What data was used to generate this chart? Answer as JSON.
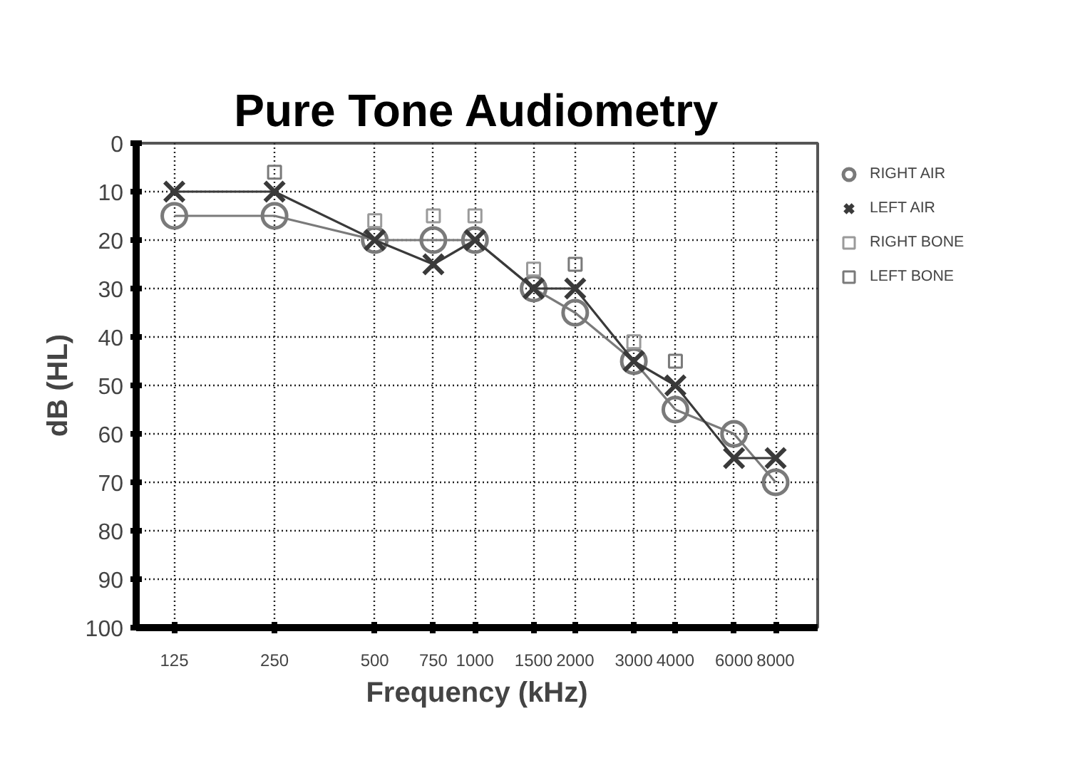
{
  "chart_data": {
    "type": "line",
    "title": "Pure Tone Audiometry",
    "xlabel": "Frequency (kHz)",
    "ylabel": "dB (HL)",
    "log": "x",
    "x": [
      125,
      250,
      500,
      750,
      1000,
      1500,
      2000,
      3000,
      4000,
      6000,
      8000
    ],
    "xlim": [
      96,
      10700
    ],
    "xticks": [
      125,
      250,
      500,
      750,
      1000,
      1500,
      2000,
      3000,
      4000,
      6000,
      8000
    ],
    "ylim": [
      100,
      0
    ],
    "yticks": [
      0,
      10,
      20,
      30,
      40,
      50,
      60,
      70,
      80,
      90,
      100
    ],
    "grid": true,
    "legend": "right",
    "line_style": "solid",
    "series": [
      {
        "name": "RIGHT AIR",
        "color": "#7a7a7a",
        "marker": "circle",
        "values": [
          15,
          15,
          20,
          20,
          20,
          30,
          35,
          45,
          55,
          60,
          70
        ]
      },
      {
        "name": "LEFT AIR",
        "color": "#3a3a3a",
        "marker": "cross",
        "values": [
          10,
          10,
          20,
          25,
          20,
          30,
          30,
          45,
          50,
          65,
          65
        ]
      },
      {
        "name": "RIGHT BONE",
        "color": "#9a9a9a",
        "type": "scatter",
        "marker": "square",
        "x": [
          500,
          750,
          1000,
          1500,
          3000
        ],
        "values": [
          16,
          15,
          15,
          26,
          41
        ]
      },
      {
        "name": "LEFT BONE",
        "color": "#7a7a7a",
        "type": "scatter",
        "marker": "square",
        "x": [
          250,
          2000,
          4000
        ],
        "values": [
          6,
          25,
          45
        ]
      }
    ]
  }
}
